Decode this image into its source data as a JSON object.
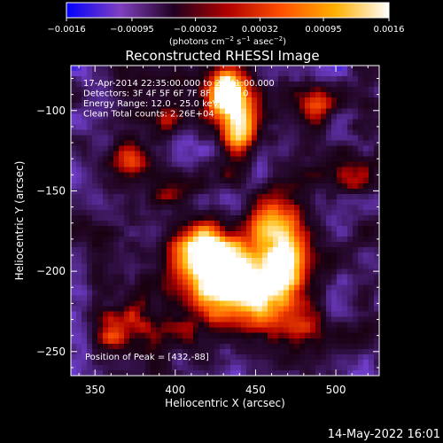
{
  "chart_data": {
    "type": "heatmap",
    "title": "Reconstructed RHESSI Image",
    "xlabel": "Heliocentric X (arcsec)",
    "ylabel": "Heliocentric Y (arcsec)",
    "xlim": [
      335,
      527
    ],
    "ylim": [
      -265,
      -72
    ],
    "xticks": [
      350,
      400,
      450,
      500
    ],
    "yticks": [
      -100,
      -150,
      -200,
      -250
    ],
    "colorbar": {
      "range": [
        -0.0016,
        0.0016
      ],
      "ticks": [
        "-0.0016",
        "-0.00095",
        "-0.00032",
        "0.00032",
        "0.00095",
        "0.0016"
      ],
      "units_label": "(photons cm^-2 s^-1 asec^-2)",
      "colormap": [
        "#0000ff",
        "#8040c0",
        "#200020",
        "#b00000",
        "#ff5000",
        "#ffb000",
        "#ffffff"
      ]
    },
    "annotations": [
      "17-Apr-2014 22:35:00.000 to 22:41:00.000",
      "Detectors: 3F 4F 5F 6F 7F 8F 9F  Att 0",
      "Energy Range: 12.0 - 25.0 keV",
      "Clean    Total counts: 2.26E+04"
    ],
    "peak_label": "Position of Peak = [432,-88]",
    "peak": [
      432,
      -88
    ],
    "sources": [
      {
        "x": 440,
        "y": -210,
        "amp": 1.0,
        "sx": 22,
        "sy": 20
      },
      {
        "x": 432,
        "y": -88,
        "amp": 0.95,
        "sx": 9,
        "sy": 11
      },
      {
        "x": 440,
        "y": -112,
        "amp": 0.7,
        "sx": 8,
        "sy": 12
      },
      {
        "x": 418,
        "y": -188,
        "amp": 0.6,
        "sx": 14,
        "sy": 14
      },
      {
        "x": 468,
        "y": -190,
        "amp": 0.6,
        "sx": 12,
        "sy": 20
      },
      {
        "x": 478,
        "y": -238,
        "amp": 0.5,
        "sx": 14,
        "sy": 8
      },
      {
        "x": 372,
        "y": -135,
        "amp": 0.5,
        "sx": 10,
        "sy": 8
      },
      {
        "x": 400,
        "y": -150,
        "amp": 0.45,
        "sx": 10,
        "sy": 8
      },
      {
        "x": 360,
        "y": -238,
        "amp": 0.45,
        "sx": 8,
        "sy": 10
      },
      {
        "x": 378,
        "y": -228,
        "amp": 0.35,
        "sx": 9,
        "sy": 9
      },
      {
        "x": 505,
        "y": -140,
        "amp": 0.4,
        "sx": 9,
        "sy": 10
      },
      {
        "x": 490,
        "y": -100,
        "amp": 0.35,
        "sx": 8,
        "sy": 8
      },
      {
        "x": 395,
        "y": -105,
        "amp": 0.3,
        "sx": 8,
        "sy": 6
      },
      {
        "x": 455,
        "y": -160,
        "amp": 0.35,
        "sx": 8,
        "sy": 10
      }
    ]
  },
  "footer": {
    "timestamp": "14-May-2022 16:01"
  }
}
